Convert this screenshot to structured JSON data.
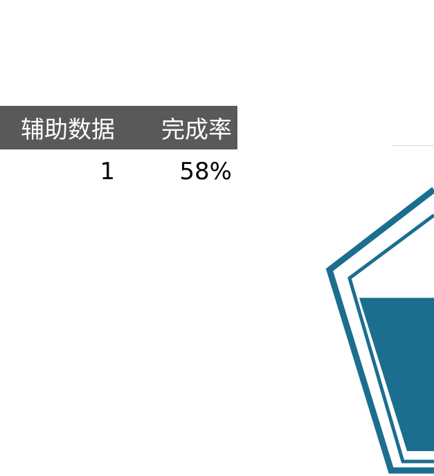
{
  "table": {
    "headers": [
      "辅助数据",
      "完成率"
    ],
    "row": {
      "aux": "1",
      "rate": "58%"
    }
  },
  "chart_data": {
    "type": "area",
    "shape": "pentagon-fill-gauge",
    "completion_rate": 0.58,
    "aux_value": 1,
    "fill_color": "#1c6e8f",
    "outline_color": "#1c6e8f"
  }
}
